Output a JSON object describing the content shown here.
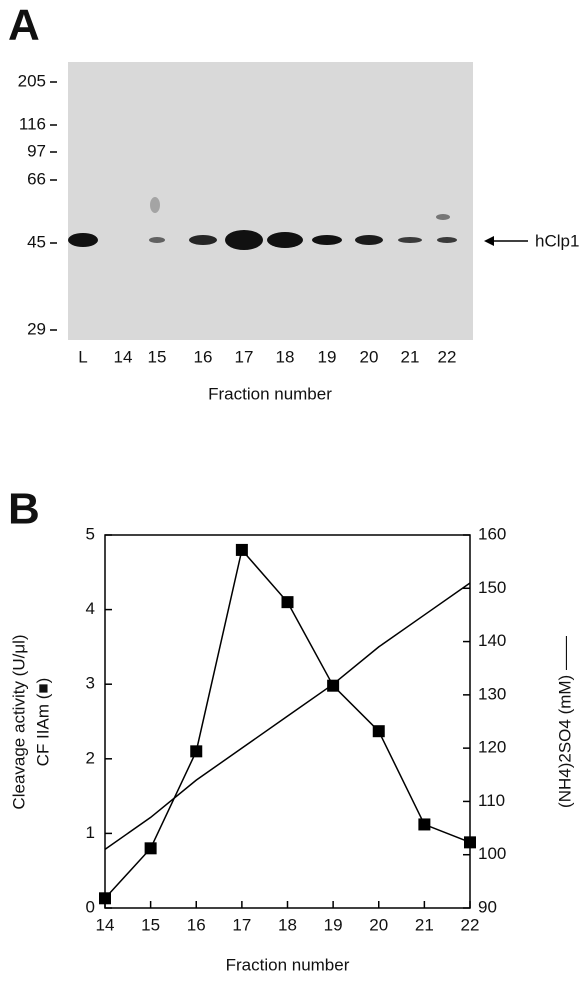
{
  "panel_a": {
    "label": "A",
    "markers": [
      "205",
      "116",
      "97",
      "66",
      "45",
      "29"
    ],
    "lanes": [
      "L",
      "14",
      "15",
      "16",
      "17",
      "18",
      "19",
      "20",
      "21",
      "22"
    ],
    "band_label": "hClp1",
    "xlabel": "Fraction number"
  },
  "panel_b_label": "B",
  "chart_data": {
    "type": "line",
    "xlabel": "Fraction number",
    "ylabel": "Cleavage activity (U/μl)",
    "ylabel2": "CF IIAm (■)",
    "y2label": "(NH4)2SO4 (mM) ——",
    "x": [
      14,
      15,
      16,
      17,
      18,
      19,
      20,
      21,
      22
    ],
    "xlim": [
      14,
      22
    ],
    "xticks": [
      14,
      15,
      16,
      17,
      18,
      19,
      20,
      21,
      22
    ],
    "ylim": [
      0,
      5
    ],
    "yticks": [
      0,
      1,
      2,
      3,
      4,
      5
    ],
    "y2lim": [
      90,
      160
    ],
    "y2ticks": [
      90,
      100,
      110,
      120,
      130,
      140,
      150,
      160
    ],
    "series": [
      {
        "color": "#000000",
        "marker": "square",
        "values": [
          0.13,
          0.8,
          2.1,
          4.8,
          4.1,
          2.98,
          2.37,
          1.12,
          0.88
        ]
      },
      {
        "color": "#000000",
        "axis": "y2",
        "values": [
          101,
          107,
          114,
          120,
          126,
          132,
          139,
          145,
          151
        ]
      }
    ]
  }
}
